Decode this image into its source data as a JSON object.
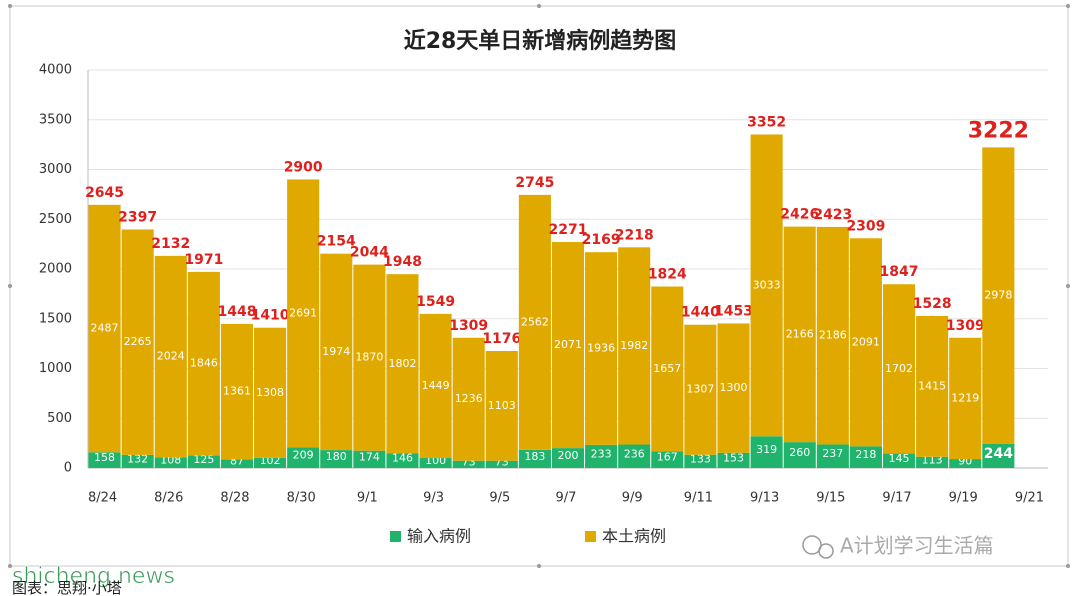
{
  "chart_data": {
    "type": "stacked_bar",
    "title": "近28天单日新增病例趋势图",
    "categories": [
      "8/24",
      null,
      "8/26",
      null,
      "8/28",
      null,
      "8/30",
      null,
      "9/1",
      null,
      "9/3",
      null,
      "9/5",
      null,
      "9/7",
      null,
      "9/9",
      null,
      "9/11",
      null,
      "9/13",
      null,
      "9/15",
      null,
      "9/17",
      null,
      "9/19",
      null,
      "9/21"
    ],
    "series": [
      {
        "name": "输入病例",
        "color": "#1fb36b",
        "values": [
          158,
          132,
          108,
          125,
          87,
          102,
          209,
          180,
          174,
          146,
          100,
          73,
          73,
          183,
          200,
          233,
          236,
          167,
          133,
          153,
          319,
          260,
          237,
          218,
          145,
          113,
          90,
          244,
          null
        ]
      },
      {
        "name": "本土病例",
        "color": "#e0a900",
        "values": [
          2487,
          2265,
          2024,
          1846,
          1361,
          1308,
          2691,
          1974,
          1870,
          1802,
          1449,
          1236,
          1103,
          2562,
          2071,
          1936,
          1982,
          1657,
          1307,
          1300,
          3033,
          2166,
          2186,
          2091,
          1702,
          1415,
          1219,
          2978,
          null
        ]
      }
    ],
    "totals": [
      2645,
      2397,
      2132,
      1971,
      1448,
      1410,
      2900,
      2154,
      2044,
      1948,
      1549,
      1309,
      1176,
      2745,
      2271,
      2169,
      2218,
      1824,
      1440,
      1453,
      3352,
      2426,
      2423,
      2309,
      1847,
      1528,
      1309,
      3222,
      null
    ],
    "ylim": [
      0,
      4000
    ],
    "yticks": [
      0,
      500,
      1000,
      1500,
      2000,
      2500,
      3000,
      3500,
      4000
    ],
    "grid": true,
    "legend": "bottom"
  },
  "watermark": "shicheng.news",
  "badge": "A计划学习生活篇",
  "caption": "图表：思翔·小塔"
}
